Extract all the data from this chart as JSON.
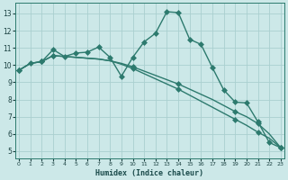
{
  "xlabel": "Humidex (Indice chaleur)",
  "bg_color": "#cce8e8",
  "line_color": "#2d7a6e",
  "grid_color": "#aacfcf",
  "x_ticks": [
    0,
    1,
    2,
    3,
    4,
    5,
    6,
    7,
    8,
    9,
    10,
    11,
    12,
    13,
    14,
    15,
    16,
    17,
    18,
    19,
    20,
    21,
    22,
    23
  ],
  "y_ticks": [
    5,
    6,
    7,
    8,
    9,
    10,
    11,
    12,
    13
  ],
  "ylim": [
    4.6,
    13.6
  ],
  "xlim": [
    -0.3,
    23.3
  ],
  "line1_x": [
    0,
    1,
    2,
    3,
    4,
    5,
    6,
    7,
    8,
    9,
    10,
    11,
    12,
    13,
    14,
    15,
    16,
    17,
    18,
    19,
    20,
    21,
    22,
    23
  ],
  "line1_y": [
    9.7,
    10.1,
    10.2,
    10.9,
    10.5,
    10.7,
    10.75,
    11.05,
    10.45,
    9.35,
    10.45,
    11.35,
    11.85,
    13.1,
    13.05,
    11.5,
    11.2,
    9.85,
    8.55,
    7.85,
    7.8,
    6.7,
    5.5,
    5.2
  ],
  "line2_x": [
    0,
    1,
    2,
    3,
    4,
    5,
    6,
    7,
    8,
    9,
    10,
    11,
    12,
    13,
    14,
    15,
    16,
    17,
    18,
    19,
    20,
    21,
    22,
    23
  ],
  "line2_y": [
    9.7,
    10.1,
    10.2,
    10.55,
    10.5,
    10.45,
    10.4,
    10.35,
    10.25,
    10.1,
    9.9,
    9.65,
    9.4,
    9.15,
    8.9,
    8.6,
    8.3,
    8.0,
    7.65,
    7.3,
    7.0,
    6.6,
    6.0,
    5.2
  ],
  "line3_x": [
    0,
    1,
    2,
    3,
    4,
    5,
    6,
    7,
    8,
    9,
    10,
    11,
    12,
    13,
    14,
    15,
    16,
    17,
    18,
    19,
    20,
    21,
    22,
    23
  ],
  "line3_y": [
    9.7,
    10.1,
    10.2,
    10.55,
    10.5,
    10.45,
    10.4,
    10.35,
    10.25,
    10.05,
    9.8,
    9.5,
    9.2,
    8.9,
    8.6,
    8.25,
    7.9,
    7.55,
    7.2,
    6.85,
    6.5,
    6.1,
    5.75,
    5.2
  ],
  "line1_markers_x": [
    0,
    1,
    2,
    3,
    4,
    5,
    6,
    7,
    8,
    9,
    10,
    11,
    12,
    13,
    14,
    15,
    16,
    17,
    18,
    19,
    20,
    21,
    22,
    23
  ],
  "line2_markers_x": [
    0,
    2,
    3,
    10,
    14,
    19,
    21,
    23
  ],
  "line2_markers_y": [
    9.7,
    10.2,
    10.55,
    9.9,
    8.9,
    7.3,
    6.6,
    5.2
  ],
  "line3_markers_x": [
    0,
    2,
    3,
    10,
    14,
    19,
    21,
    23
  ],
  "line3_markers_y": [
    9.7,
    10.2,
    10.55,
    9.8,
    8.6,
    6.85,
    6.1,
    5.2
  ],
  "markersize": 3.0,
  "linewidth": 1.0
}
